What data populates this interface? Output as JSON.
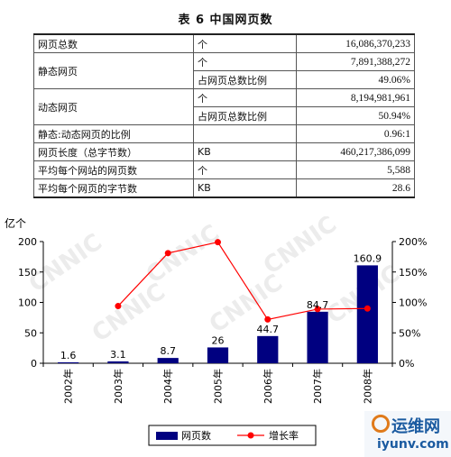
{
  "table": {
    "title": "表 6  中国网页数",
    "rows": [
      {
        "label": "网页总数",
        "unit": "个",
        "value": "16,086,370,233"
      },
      {
        "label": "静态网页",
        "sub": [
          {
            "unit": "个",
            "value": "7,891,388,272"
          },
          {
            "unit": "占网页总数比例",
            "value": "49.06%"
          }
        ]
      },
      {
        "label": "动态网页",
        "sub": [
          {
            "unit": "个",
            "value": "8,194,981,961"
          },
          {
            "unit": "占网页总数比例",
            "value": "50.94%"
          }
        ]
      },
      {
        "label": "静态:动态网页的比例",
        "unit": "",
        "value": "0.96:1"
      },
      {
        "label": "网页长度（总字节数）",
        "unit": "KB",
        "value": "460,217,386,099"
      },
      {
        "label": "平均每个网站的网页数",
        "unit": "个",
        "value": "5,588"
      },
      {
        "label": "平均每个网页的字节数",
        "unit": "KB",
        "value": "28.6"
      }
    ]
  },
  "chart_data": {
    "type": "bar",
    "categories": [
      "2002年",
      "2003年",
      "2004年",
      "2005年",
      "2006年",
      "2007年",
      "2008年"
    ],
    "series": [
      {
        "name": "网页数",
        "type": "bar",
        "axis": "left",
        "color": "#000080",
        "values": [
          1.6,
          3.1,
          8.7,
          26,
          44.7,
          84.7,
          160.9
        ],
        "labels": [
          "1.6",
          "3.1",
          "8.7",
          "26",
          "44.7",
          "84.7",
          "160.9"
        ]
      },
      {
        "name": "增长率",
        "type": "line",
        "axis": "right",
        "color": "#ff0000",
        "values": [
          null,
          94,
          181,
          199,
          72,
          89,
          90
        ]
      }
    ],
    "y_left": {
      "label": "亿个",
      "lim": [
        0,
        200
      ],
      "ticks": [
        "0",
        "50",
        "100",
        "150",
        "200"
      ]
    },
    "y_right": {
      "lim": [
        0,
        200
      ],
      "ticks": [
        "0%",
        "50%",
        "100%",
        "150%",
        "200%"
      ]
    },
    "legend_position": "bottom",
    "grid": false,
    "watermark": "CNNIC"
  },
  "watermark": {
    "title": "运维网",
    "url": "iyunv.com"
  }
}
